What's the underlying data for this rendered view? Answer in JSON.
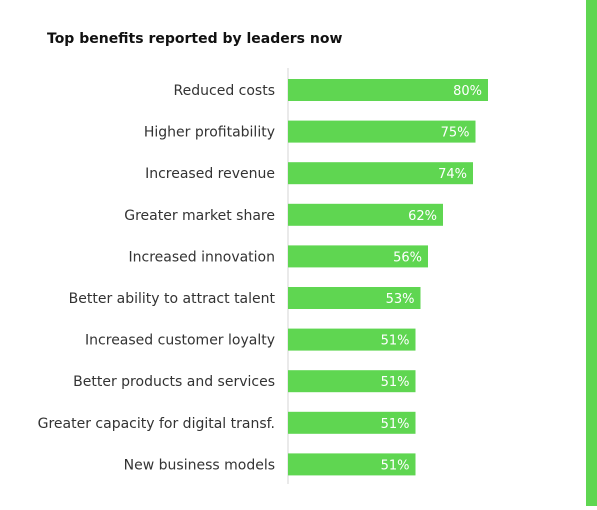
{
  "chart_data": {
    "type": "bar",
    "orientation": "horizontal",
    "title": "Top benefits reported by leaders now",
    "categories": [
      "Reduced costs",
      "Higher profitability",
      "Increased revenue",
      "Greater market share",
      "Increased innovation",
      "Better ability to attract talent",
      "Increased customer loyalty",
      "Better products and services",
      "Greater capacity for digital transf.",
      "New business models"
    ],
    "values": [
      80,
      75,
      74,
      62,
      56,
      53,
      51,
      51,
      51,
      51
    ],
    "value_labels": [
      "80%",
      "75%",
      "74%",
      "62%",
      "56%",
      "53%",
      "51%",
      "51%",
      "51%",
      "51%"
    ],
    "unit": "%",
    "xlim": [
      0,
      100
    ],
    "grid": false,
    "bar_color": "#5fd651",
    "label_color": "#ffffff",
    "accent_stripe_color": "#5fd651"
  }
}
